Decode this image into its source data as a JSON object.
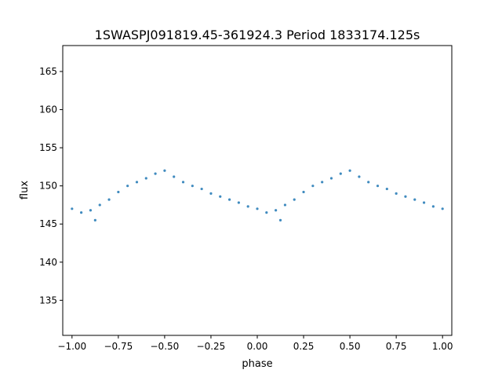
{
  "chart_data": {
    "type": "scatter",
    "title": "1SWASPJ091819.45-361924.3 Period 1833174.125s",
    "xlabel": "phase",
    "ylabel": "flux",
    "xlim": [
      -1.05,
      1.05
    ],
    "ylim": [
      130.4,
      168.4
    ],
    "x_ticks": [
      -1.0,
      -0.75,
      -0.5,
      -0.25,
      0.0,
      0.25,
      0.5,
      0.75,
      1.0
    ],
    "x_tick_labels": [
      "−1.00",
      "−0.75",
      "−0.50",
      "−0.25",
      "0.00",
      "0.25",
      "0.50",
      "0.75",
      "1.00"
    ],
    "y_ticks": [
      135,
      140,
      145,
      150,
      155,
      160,
      165
    ],
    "y_tick_labels": [
      "135",
      "140",
      "145",
      "150",
      "155",
      "160",
      "165"
    ],
    "grid": false,
    "legend": "none",
    "point_color": "#1f77b4",
    "series": [
      {
        "x": [
          -1.0,
          -0.95,
          -0.9,
          -0.875,
          -0.85,
          -0.8,
          -0.75,
          -0.7,
          -0.65,
          -0.6,
          -0.55,
          -0.5,
          -0.45,
          -0.4,
          -0.35,
          -0.3,
          -0.25,
          -0.2,
          -0.15,
          -0.1,
          -0.05,
          0.0,
          0.05,
          0.1,
          0.125,
          0.15,
          0.2,
          0.25,
          0.3,
          0.35,
          0.4,
          0.45,
          0.5,
          0.55,
          0.6,
          0.65,
          0.7,
          0.75,
          0.8,
          0.85,
          0.9,
          0.95,
          1.0
        ],
        "y": [
          147.0,
          146.5,
          146.8,
          145.5,
          147.5,
          148.2,
          149.2,
          150.0,
          150.5,
          151.0,
          151.6,
          152.0,
          151.2,
          150.5,
          150.0,
          149.6,
          149.0,
          148.6,
          148.2,
          147.8,
          147.3,
          147.0,
          146.5,
          146.8,
          145.5,
          147.5,
          148.2,
          149.2,
          150.0,
          150.5,
          151.0,
          151.6,
          152.0,
          151.2,
          150.5,
          150.0,
          149.6,
          149.0,
          148.6,
          148.2,
          147.8,
          147.3,
          147.0
        ]
      }
    ]
  }
}
